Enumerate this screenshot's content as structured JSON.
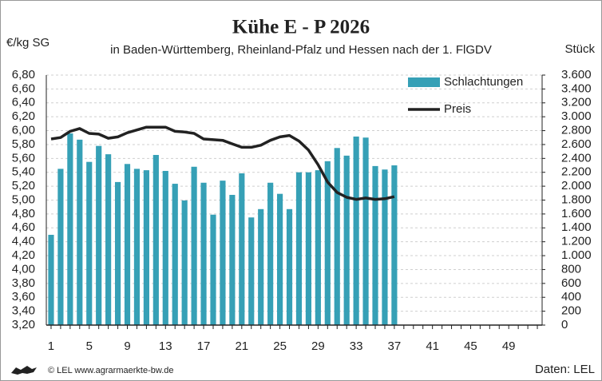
{
  "chart_data": {
    "type": "bar-line",
    "title": "Kühe E - P 2026",
    "subtitle": "in Baden-Württemberg, Rheinland-Pfalz und Hessen nach der 1. FlGDV",
    "ylabel": "€/kg SG",
    "y2label": "Stück",
    "source_left": "© LEL www.agrarmaerkte-bw.de",
    "source_right": "Daten: LEL",
    "categories": [
      1,
      null,
      null,
      null,
      5,
      null,
      null,
      null,
      9,
      null,
      null,
      null,
      13,
      null,
      null,
      null,
      17,
      null,
      null,
      null,
      21,
      null,
      null,
      null,
      25,
      null,
      null,
      null,
      29,
      null,
      null,
      null,
      33,
      null,
      null,
      null,
      37,
      null,
      null,
      null,
      41,
      null,
      null,
      null,
      45,
      null,
      null,
      null,
      49,
      null,
      null,
      null
    ],
    "series": [
      {
        "name": "Schlachtungen",
        "color": "#36a0b6",
        "axis": "y2",
        "kind": "bar",
        "values": [
          1300,
          2250,
          2760,
          2670,
          2350,
          2580,
          2460,
          2060,
          2320,
          2250,
          2230,
          2450,
          2220,
          2035,
          1795,
          2280,
          2050,
          1590,
          2080,
          1875,
          2185,
          1550,
          1670,
          2050,
          1890,
          1670,
          2200,
          2200,
          2230,
          2360,
          2550,
          2440,
          2715,
          2700,
          2290,
          2240,
          2300,
          null,
          null,
          null,
          null,
          null,
          null,
          null,
          null,
          null,
          null,
          null,
          null,
          null,
          null,
          null
        ]
      },
      {
        "name": "Preis",
        "color": "#222222",
        "axis": "y",
        "kind": "line",
        "values": [
          5.88,
          5.9,
          5.99,
          6.03,
          5.96,
          5.95,
          5.89,
          5.91,
          5.97,
          6.01,
          6.05,
          6.05,
          6.05,
          5.99,
          5.98,
          5.96,
          5.88,
          5.87,
          5.86,
          5.81,
          5.76,
          5.76,
          5.79,
          5.86,
          5.91,
          5.93,
          5.85,
          5.72,
          5.51,
          5.26,
          5.11,
          5.04,
          5.01,
          5.03,
          5.01,
          5.02,
          5.05,
          null,
          null,
          null,
          null,
          null,
          null,
          null,
          null,
          null,
          null,
          null,
          null,
          null,
          null,
          null
        ]
      }
    ],
    "ylim": [
      3.2,
      6.8
    ],
    "yticks": [
      {
        "value": 3.2,
        "label": "3,20"
      },
      {
        "value": 3.4,
        "label": "3,40"
      },
      {
        "value": 3.6,
        "label": "3,60"
      },
      {
        "value": 3.8,
        "label": "3,80"
      },
      {
        "value": 4.0,
        "label": "4,00"
      },
      {
        "value": 4.2,
        "label": "4,20"
      },
      {
        "value": 4.4,
        "label": "4,40"
      },
      {
        "value": 4.6,
        "label": "4,60"
      },
      {
        "value": 4.8,
        "label": "4,80"
      },
      {
        "value": 5.0,
        "label": "5,00"
      },
      {
        "value": 5.2,
        "label": "5,20"
      },
      {
        "value": 5.4,
        "label": "5,40"
      },
      {
        "value": 5.6,
        "label": "5,60"
      },
      {
        "value": 5.8,
        "label": "5,80"
      },
      {
        "value": 6.0,
        "label": "6,00"
      },
      {
        "value": 6.2,
        "label": "6,20"
      },
      {
        "value": 6.4,
        "label": "6,40"
      },
      {
        "value": 6.6,
        "label": "6,60"
      },
      {
        "value": 6.8,
        "label": "6,80"
      }
    ],
    "y2lim": [
      0,
      3600
    ],
    "y2ticks": [
      0,
      200,
      400,
      600,
      800,
      {
        "value": 1000,
        "label": "1.000"
      },
      {
        "value": 1200,
        "label": "1.200"
      },
      {
        "value": 1400,
        "label": "1.400"
      },
      {
        "value": 1600,
        "label": "1.600"
      },
      {
        "value": 1800,
        "label": "1.800"
      },
      {
        "value": 2000,
        "label": "2.000"
      },
      {
        "value": 2200,
        "label": "2.200"
      },
      {
        "value": 2400,
        "label": "2.400"
      },
      {
        "value": 2600,
        "label": "2.600"
      },
      {
        "value": 2800,
        "label": "2.800"
      },
      {
        "value": 3000,
        "label": "3.000"
      },
      {
        "value": 3200,
        "label": "3.200"
      },
      {
        "value": 3400,
        "label": "3.400"
      },
      {
        "value": 3600,
        "label": "3.600"
      }
    ],
    "grid": true,
    "legend": "top-right"
  }
}
